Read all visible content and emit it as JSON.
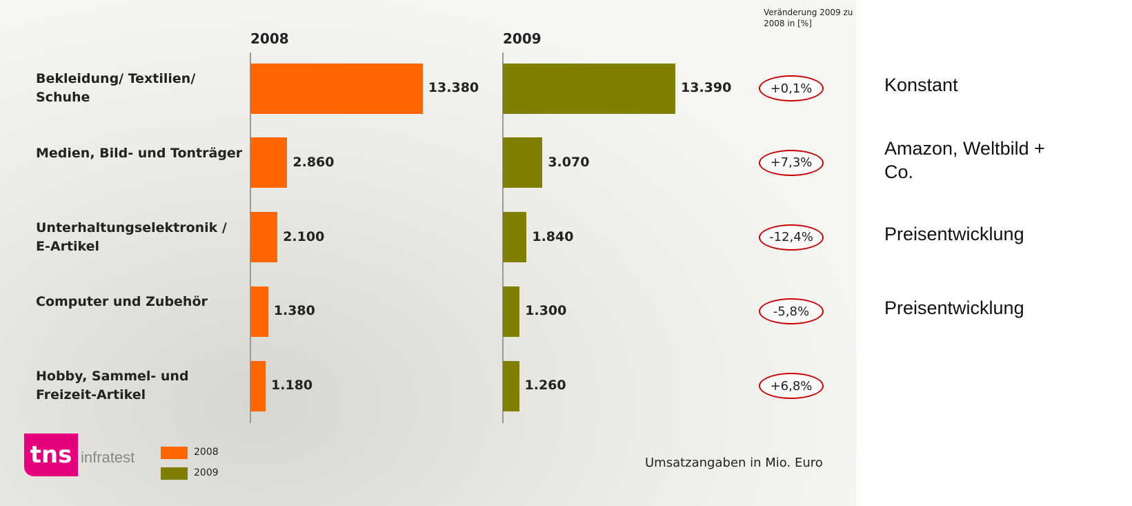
{
  "chart_data": {
    "type": "bar",
    "orientation": "horizontal",
    "categories": [
      "Bekleidung/ Textilien/ Schuhe",
      "Medien, Bild- und Tonträger",
      "Unterhaltungselektronik / E-Artikel",
      "Computer und Zubehör",
      "Hobby, Sammel- und Freizeit-Artikel"
    ],
    "series": [
      {
        "name": "2008",
        "color": "#ff6600",
        "values": [
          13380,
          2860,
          2100,
          1380,
          1180
        ],
        "value_labels": [
          "13.380",
          "2.860",
          "2.100",
          "1.380",
          "1.180"
        ]
      },
      {
        "name": "2009",
        "color": "#808000",
        "values": [
          13390,
          3070,
          1840,
          1300,
          1260
        ],
        "value_labels": [
          "13.390",
          "3.070",
          "1.840",
          "1.300",
          "1.260"
        ]
      }
    ],
    "change": {
      "title": "Veränderung 2009 zu 2008 in [%]",
      "values": [
        0.1,
        7.3,
        -12.4,
        -5.8,
        6.8
      ],
      "value_labels": [
        "+0,1%",
        "+7,3%",
        "-12,4%",
        "-5,8%",
        "+6,8%"
      ],
      "color": "#cc0000"
    },
    "comments": [
      "Konstant",
      "Amazon, Weltbild + Co.",
      "Preisentwicklung",
      "Preisentwicklung",
      null
    ],
    "footnote": "Umsatzangaben in Mio. Euro",
    "logo": {
      "brand": "tns",
      "name": "infratest"
    }
  }
}
